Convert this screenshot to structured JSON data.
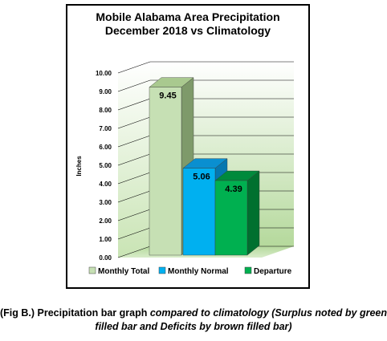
{
  "chart_data": {
    "type": "bar",
    "title": [
      "Mobile Alabama Area Precipitation",
      "December 2018 vs Climatology"
    ],
    "ylabel": "Inches",
    "ylim": [
      0,
      10
    ],
    "y_ticks": [
      "0.00",
      "1.00",
      "2.00",
      "3.00",
      "4.00",
      "5.00",
      "6.00",
      "7.00",
      "8.00",
      "9.00",
      "10.00"
    ],
    "grid": true,
    "three_d": true,
    "legend_position": "bottom",
    "series": [
      {
        "name": "Monthly Total",
        "value": 9.45,
        "label": "9.45",
        "color": "#c6e0b4",
        "top_color": "#a9c98f",
        "side_color": "#7e9a6a"
      },
      {
        "name": "Monthly Normal",
        "value": 5.06,
        "label": "5.06",
        "color": "#00b0f0",
        "top_color": "#0a8fd0",
        "side_color": "#0577b0"
      },
      {
        "name": "Departure",
        "value": 4.39,
        "label": "4.39",
        "color": "#00b050",
        "top_color": "#008a3c",
        "side_color": "#00702f"
      }
    ]
  },
  "caption": {
    "prefix": "(Fig B.) Precipitation bar graph ",
    "italic": "compared to climatology (Surplus noted by green filled bar and Deficits by brown filled bar)"
  }
}
